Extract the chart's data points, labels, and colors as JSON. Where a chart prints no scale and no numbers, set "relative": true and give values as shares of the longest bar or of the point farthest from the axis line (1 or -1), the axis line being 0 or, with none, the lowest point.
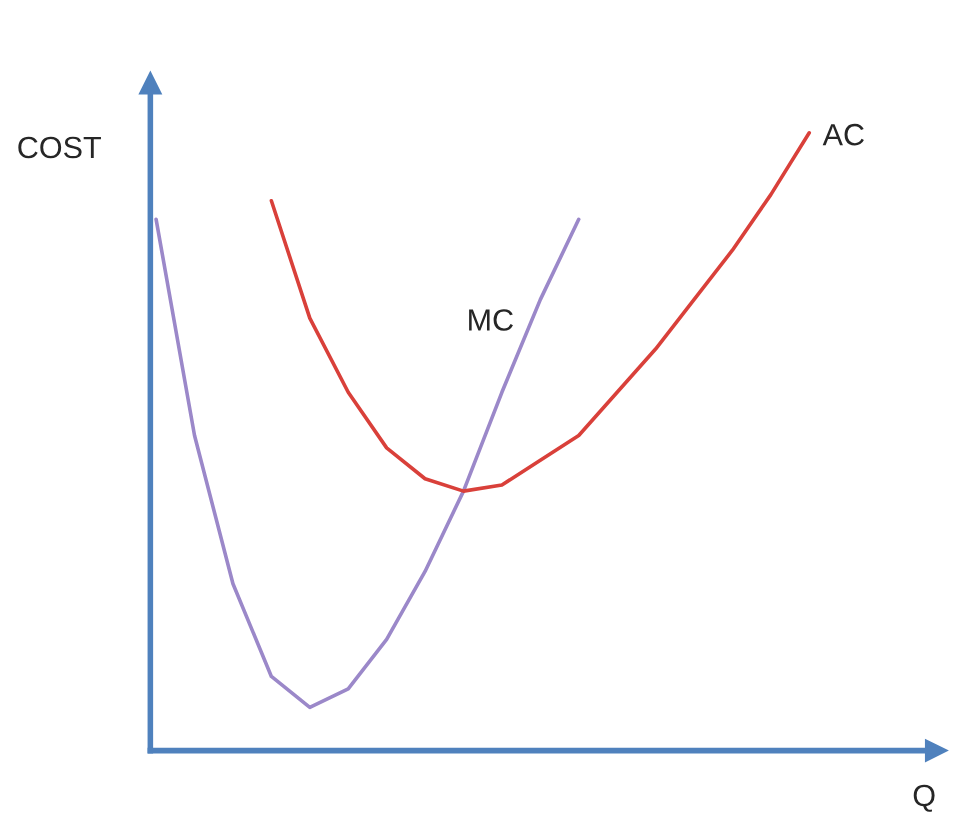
{
  "chart_data": {
    "type": "line",
    "relative": true,
    "xlabel": "Q",
    "ylabel": "COST",
    "categories": [
      null,
      null,
      null,
      null,
      null,
      null,
      null,
      null,
      null,
      null,
      null,
      null,
      null,
      null,
      null,
      null,
      null,
      null
    ],
    "series": [
      {
        "name": "MC",
        "color": "#9b88c9",
        "values": [
          0.86,
          0.51,
          0.27,
          0.12,
          0.07,
          0.1,
          0.18,
          0.29,
          0.42,
          0.58,
          0.73,
          0.86,
          null,
          null,
          null,
          null,
          null,
          null
        ]
      },
      {
        "name": "AC",
        "color": "#d9403a",
        "values": [
          null,
          null,
          null,
          0.89,
          0.7,
          0.58,
          0.49,
          0.44,
          0.42,
          0.43,
          0.47,
          0.51,
          0.58,
          0.65,
          0.73,
          0.81,
          0.9,
          1.0
        ]
      }
    ],
    "marker": "none",
    "line_style": "solid",
    "legend": false
  }
}
